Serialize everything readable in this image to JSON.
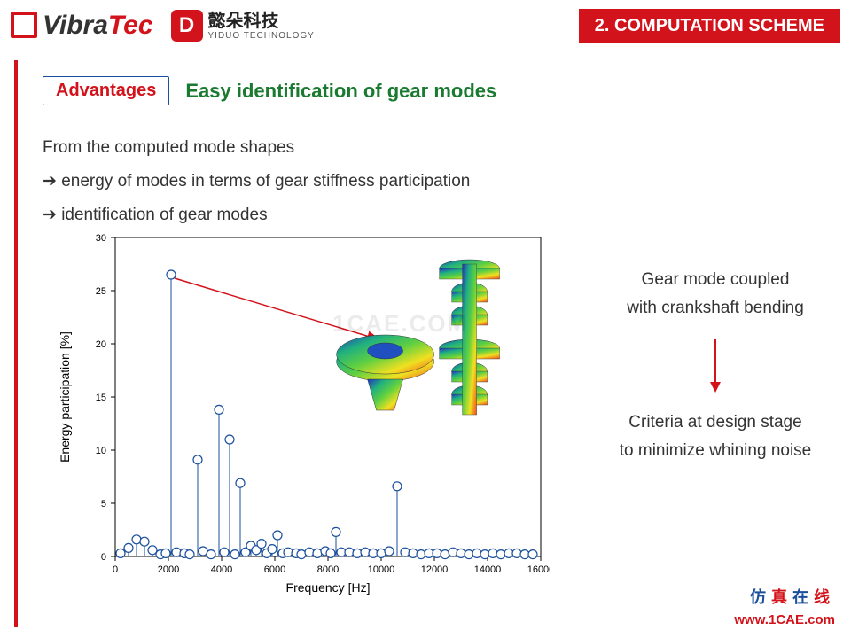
{
  "header": {
    "logo_vibratec_a": "Vibra",
    "logo_vibratec_b": "Tec",
    "logo_yiduo_cn": "懿朵科技",
    "logo_yiduo_en": "YIDUO TECHNOLOGY",
    "section_banner": "2. COMPUTATION SCHEME"
  },
  "advantages": {
    "box_label": "Advantages",
    "subtitle": "Easy identification of gear modes"
  },
  "body": {
    "line1": "From the computed mode shapes",
    "line2": "energy of modes in terms of gear stiffness participation",
    "line3": "identification of gear modes"
  },
  "right": {
    "text1a": "Gear mode coupled",
    "text1b": "with crankshaft bending",
    "text2a": "Criteria at design stage",
    "text2b": "to minimize whining noise"
  },
  "chart": {
    "type": "stem",
    "xlabel": "Frequency [Hz]",
    "ylabel": "Energy participation [%]",
    "xlim": [
      0,
      16000
    ],
    "ylim": [
      0,
      30
    ],
    "xtick_step": 2000,
    "ytick_step": 5,
    "label_fontsize": 14,
    "tick_fontsize": 11,
    "stem_color": "#1a4f9c",
    "marker_edge_color": "#1a4f9c",
    "marker_fill_color": "#ffffff",
    "marker_size": 5,
    "axis_color": "#000000",
    "background_color": "#ffffff",
    "annotation_arrow_color": "#d3131b",
    "points": [
      {
        "x": 200,
        "y": 0.3
      },
      {
        "x": 500,
        "y": 0.8
      },
      {
        "x": 800,
        "y": 1.6
      },
      {
        "x": 1100,
        "y": 1.4
      },
      {
        "x": 1400,
        "y": 0.6
      },
      {
        "x": 1700,
        "y": 0.2
      },
      {
        "x": 1900,
        "y": 0.3
      },
      {
        "x": 2100,
        "y": 26.5
      },
      {
        "x": 2300,
        "y": 0.4
      },
      {
        "x": 2600,
        "y": 0.3
      },
      {
        "x": 2800,
        "y": 0.2
      },
      {
        "x": 3100,
        "y": 9.1
      },
      {
        "x": 3300,
        "y": 0.5
      },
      {
        "x": 3600,
        "y": 0.2
      },
      {
        "x": 3900,
        "y": 13.8
      },
      {
        "x": 4100,
        "y": 0.4
      },
      {
        "x": 4300,
        "y": 11.0
      },
      {
        "x": 4500,
        "y": 0.2
      },
      {
        "x": 4700,
        "y": 6.9
      },
      {
        "x": 4900,
        "y": 0.4
      },
      {
        "x": 5100,
        "y": 1.0
      },
      {
        "x": 5300,
        "y": 0.6
      },
      {
        "x": 5500,
        "y": 1.2
      },
      {
        "x": 5700,
        "y": 0.3
      },
      {
        "x": 5900,
        "y": 0.7
      },
      {
        "x": 6100,
        "y": 2.0
      },
      {
        "x": 6300,
        "y": 0.3
      },
      {
        "x": 6500,
        "y": 0.4
      },
      {
        "x": 6800,
        "y": 0.3
      },
      {
        "x": 7000,
        "y": 0.2
      },
      {
        "x": 7300,
        "y": 0.4
      },
      {
        "x": 7600,
        "y": 0.3
      },
      {
        "x": 7900,
        "y": 0.5
      },
      {
        "x": 8100,
        "y": 0.3
      },
      {
        "x": 8300,
        "y": 2.3
      },
      {
        "x": 8500,
        "y": 0.4
      },
      {
        "x": 8800,
        "y": 0.4
      },
      {
        "x": 9100,
        "y": 0.3
      },
      {
        "x": 9400,
        "y": 0.4
      },
      {
        "x": 9700,
        "y": 0.3
      },
      {
        "x": 10000,
        "y": 0.3
      },
      {
        "x": 10300,
        "y": 0.5
      },
      {
        "x": 10600,
        "y": 6.6
      },
      {
        "x": 10900,
        "y": 0.4
      },
      {
        "x": 11200,
        "y": 0.3
      },
      {
        "x": 11500,
        "y": 0.2
      },
      {
        "x": 11800,
        "y": 0.3
      },
      {
        "x": 12100,
        "y": 0.3
      },
      {
        "x": 12400,
        "y": 0.2
      },
      {
        "x": 12700,
        "y": 0.4
      },
      {
        "x": 13000,
        "y": 0.3
      },
      {
        "x": 13300,
        "y": 0.2
      },
      {
        "x": 13600,
        "y": 0.3
      },
      {
        "x": 13900,
        "y": 0.2
      },
      {
        "x": 14200,
        "y": 0.3
      },
      {
        "x": 14500,
        "y": 0.2
      },
      {
        "x": 14800,
        "y": 0.3
      },
      {
        "x": 15100,
        "y": 0.3
      },
      {
        "x": 15400,
        "y": 0.2
      },
      {
        "x": 15700,
        "y": 0.2
      }
    ]
  },
  "mesh_graphic": {
    "description": "FE mesh rendering of a gear coupled with a crankshaft segment, contour-colored (blue→green→yellow→red).",
    "position_note": "overlaid on upper-right of the chart area",
    "gradient_stops": [
      "#2030c0",
      "#20b080",
      "#60d040",
      "#f0e020",
      "#f05020"
    ]
  },
  "footer": {
    "cn1": "仿",
    "cn2": "真",
    "cn3": "在",
    "cn4": "线",
    "url": "www.1CAE.com"
  },
  "watermark": "1CAE.COM"
}
